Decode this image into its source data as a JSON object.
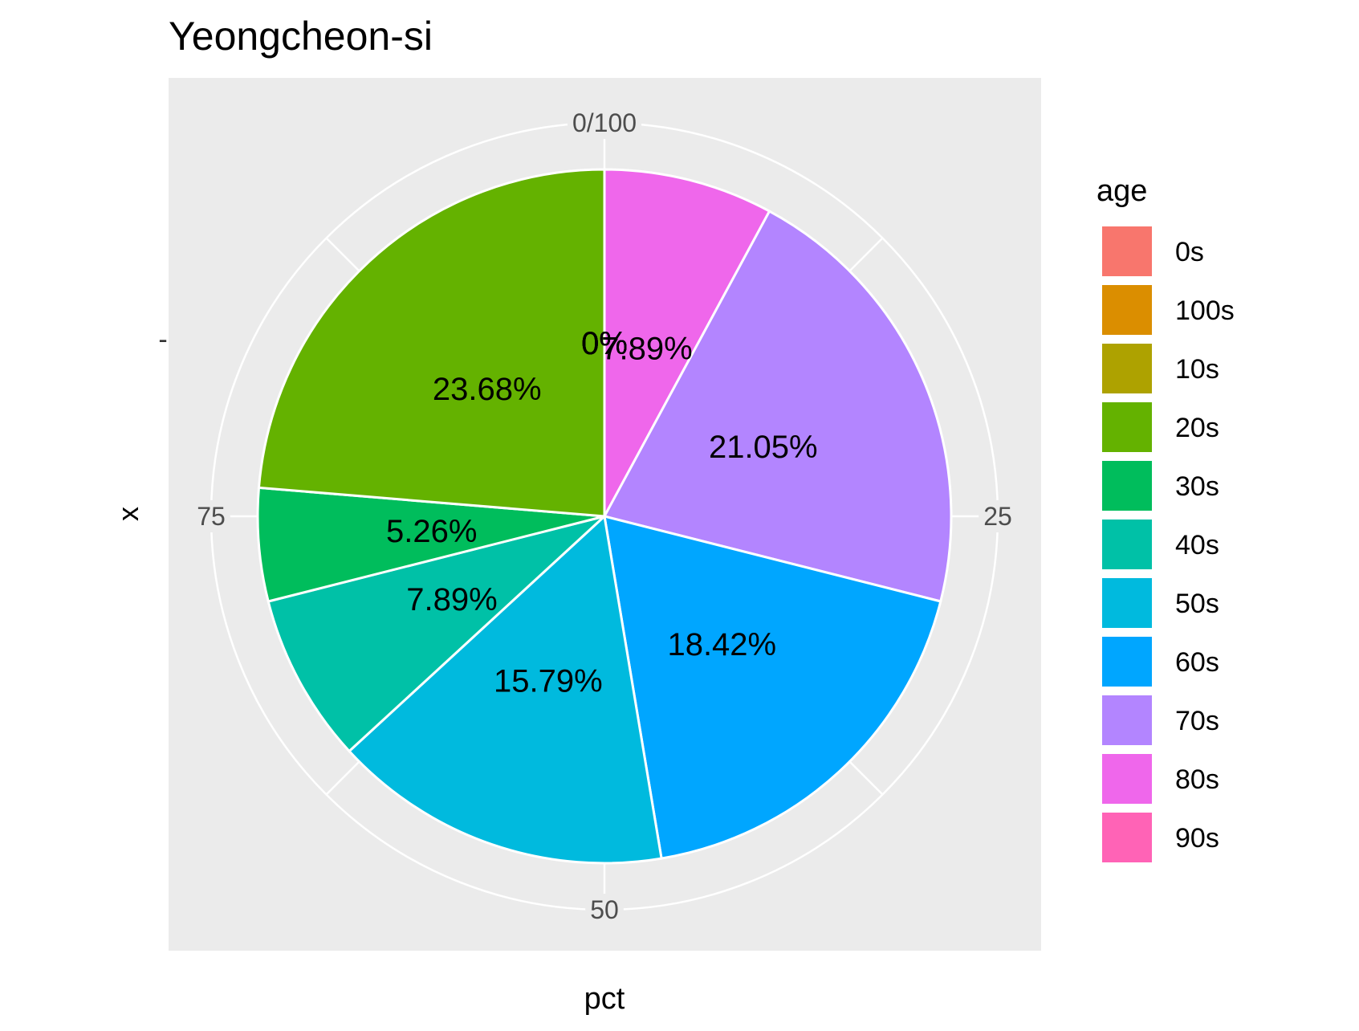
{
  "chart_data": {
    "type": "pie",
    "title": "Yeongcheon-si",
    "xlabel": "pct",
    "ylabel": "x",
    "y_tick_label": "-",
    "angular_ticks": [
      "0/100",
      "25",
      "50",
      "75"
    ],
    "legend_title": "age",
    "legend_position": "right",
    "grid": true,
    "slices": [
      {
        "category": "0s",
        "value": 0,
        "label": "0%",
        "color": "#F8766D"
      },
      {
        "category": "100s",
        "value": 0,
        "label": "0%",
        "color": "#DB8E00"
      },
      {
        "category": "10s",
        "value": 0,
        "label": "0%",
        "color": "#AEA200"
      },
      {
        "category": "20s",
        "value": 23.68,
        "label": "23.68%",
        "color": "#64B200"
      },
      {
        "category": "30s",
        "value": 5.26,
        "label": "5.26%",
        "color": "#00BD5C"
      },
      {
        "category": "40s",
        "value": 7.89,
        "label": "7.89%",
        "color": "#00C1A7"
      },
      {
        "category": "50s",
        "value": 15.79,
        "label": "15.79%",
        "color": "#00BADE"
      },
      {
        "category": "60s",
        "value": 18.42,
        "label": "18.42%",
        "color": "#00A6FF"
      },
      {
        "category": "70s",
        "value": 21.05,
        "label": "21.05%",
        "color": "#B385FF"
      },
      {
        "category": "80s",
        "value": 7.89,
        "label": "7.89%",
        "color": "#EF67EB"
      },
      {
        "category": "90s",
        "value": 0,
        "label": "0%",
        "color": "#FF63B6"
      }
    ]
  }
}
